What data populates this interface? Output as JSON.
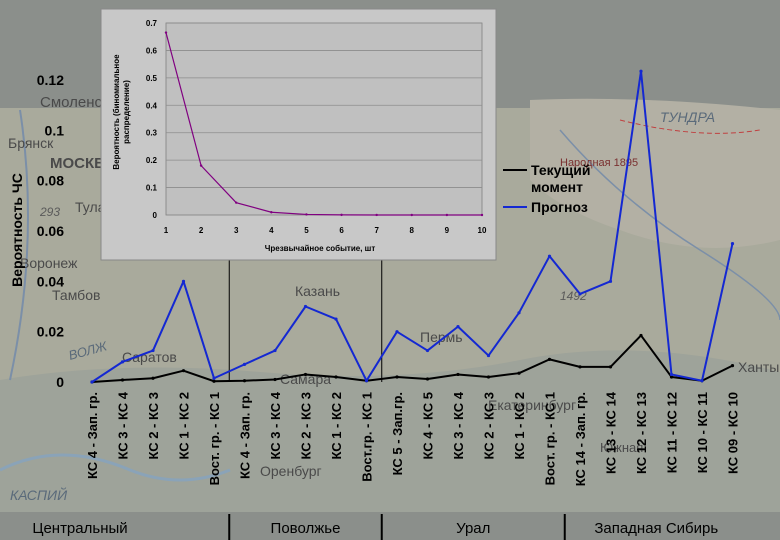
{
  "chart_data": [
    {
      "type": "line",
      "title": "",
      "ylabel": "Вероятность ЧС",
      "xlabel": "",
      "ylim": [
        0,
        0.12
      ],
      "yticks": [
        0,
        0.02,
        0.04,
        0.06,
        0.08,
        0.1,
        0.12
      ],
      "ytick_labels": [
        "0",
        "0.02",
        "0.04",
        "0.06",
        "0.08",
        "0.1",
        "0.12"
      ],
      "categories": [
        "КС 4 - Зап. гр.",
        "КС 3 - КС 4",
        "КС 2 - КС 3",
        "КС 1 - КС 2",
        "Вост. гр. - КС 1",
        "КС 4 - Зап. гр.",
        "КС 3 - КС 4",
        "КС 2 - КС 3",
        "КС 1 - КС 2",
        "Вост.гр. - КС 1",
        "КС 5 - Зап.гр.",
        "КС 4 - КС 5",
        "КС 3 - КС 4",
        "КС 2 - КС 3",
        "КС 1 - КС 2",
        "Вост. гр. - КС 1",
        "КС 14 - Зап. гр.",
        "КС 13 - КС 14",
        "КС 12 - КС 13",
        "КС 11 - КС 12",
        "КС 10 - КС 11",
        "КС 09 - КС 10"
      ],
      "series": [
        {
          "name": "Текущий момент",
          "color": "#000000",
          "values": [
            0.0,
            0.0008,
            0.0015,
            0.0045,
            0.0003,
            0.0005,
            0.001,
            0.003,
            0.002,
            0.0005,
            0.002,
            0.0012,
            0.003,
            0.002,
            0.0035,
            0.009,
            0.006,
            0.006,
            0.0185,
            0.002,
            0.0005,
            0.0065
          ]
        },
        {
          "name": "Прогноз",
          "color": "#1428d2",
          "values": [
            0.0,
            0.008,
            0.0125,
            0.04,
            0.0015,
            0.007,
            0.0125,
            0.03,
            0.025,
            0.0005,
            0.02,
            0.0125,
            0.022,
            0.0105,
            0.0275,
            0.05,
            0.035,
            0.04,
            0.1235,
            0.003,
            0.0005,
            0.055
          ]
        }
      ],
      "legend": {
        "position": "right",
        "entries": [
          "Текущий момент",
          "Прогноз"
        ]
      },
      "groups": [
        {
          "label": "Центральный",
          "count": 5
        },
        {
          "label": "Поволжье",
          "count": 5
        },
        {
          "label": "Урал",
          "count": 6
        },
        {
          "label": "Западная Сибирь",
          "count": 6
        }
      ]
    },
    {
      "type": "line",
      "title": "",
      "xlabel": "Чрезвычайное событие, шт",
      "ylabel": "Вероятность (биномиальное распределение)",
      "x": [
        1,
        2,
        3,
        4,
        5,
        6,
        7,
        8,
        9,
        10
      ],
      "values": [
        0.665,
        0.18,
        0.045,
        0.01,
        0.002,
        0.0005,
        0.0001,
        0.0,
        0.0,
        0.0
      ],
      "xlim": [
        1,
        10
      ],
      "ylim": [
        0,
        0.7
      ],
      "yticks": [
        0,
        0.1,
        0.2,
        0.3,
        0.4,
        0.5,
        0.6,
        0.7
      ],
      "ytick_labels": [
        "0",
        "0.1",
        "0.2",
        "0.3",
        "0.4",
        "0.5",
        "0.6",
        "0.7"
      ],
      "xtick_labels": [
        "1",
        "2",
        "3",
        "4",
        "5",
        "6",
        "7",
        "8",
        "9",
        "10"
      ],
      "line_color": "#800080",
      "grid": true
    }
  ],
  "map": {
    "labels": [
      "Смоленск",
      "Брянск",
      "МОСКВ",
      "Тула",
      "Воронеж",
      "Тамбов",
      "Саратов",
      "Самара",
      "Казань",
      "Пермь",
      "Екатеринбург",
      "ТУНДРА",
      "Народная 1895",
      "1492",
      "Ханты",
      "ВОЛЖ",
      "КАСПИЙ",
      "293",
      "Оренбург",
      "Южная"
    ]
  }
}
